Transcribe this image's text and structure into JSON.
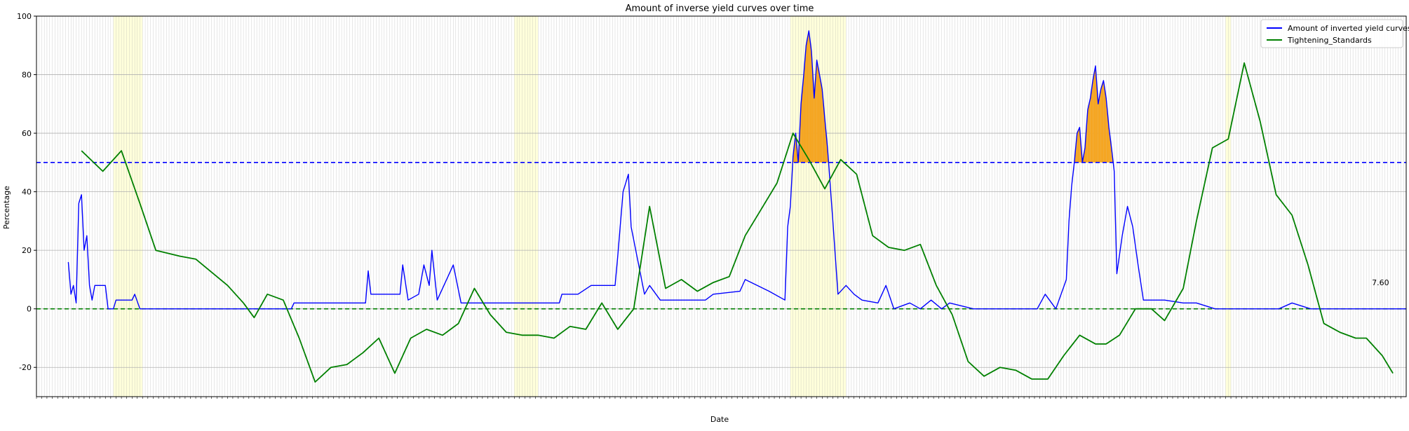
{
  "chart_data": {
    "type": "line",
    "title": "Amount of inverse yield curves over time",
    "xlabel": "Date",
    "ylabel": "Percentage",
    "xlim": [
      "1982-01-01",
      "2024-12-31"
    ],
    "ylim": [
      -30,
      100
    ],
    "yticks": [
      -20,
      0,
      20,
      40,
      60,
      80,
      100
    ],
    "grid": true,
    "legend_position": "top-right",
    "x_tick_labels": "monthly dates (illegibly small)",
    "reference_lines": [
      {
        "y": 50,
        "color": "#0000ff",
        "style": "dashed"
      },
      {
        "y": 0,
        "color": "#008000",
        "style": "dashed"
      }
    ],
    "highlight_regions": [
      {
        "start": "1984-06-01",
        "end": "1985-05-01",
        "color": "#ffff99"
      },
      {
        "start": "1997-01-01",
        "end": "1997-10-01",
        "color": "#ffff99"
      },
      {
        "start": "2005-09-01",
        "end": "2007-06-01",
        "color": "#ffff99"
      },
      {
        "start": "2019-05-01",
        "end": "2019-07-01",
        "color": "#ffff99"
      }
    ],
    "fill_above_threshold": {
      "threshold": 50,
      "color": "#f5a623",
      "series": "Amount of inverted yield curves"
    },
    "annotation": {
      "text": "7.60",
      "x": "2023-10-01",
      "y": 7.6
    },
    "series": [
      {
        "name": "Amount of inverted yield curves",
        "color": "#0000ff",
        "points": [
          [
            "1983-01-01",
            16
          ],
          [
            "1983-02-01",
            5
          ],
          [
            "1983-03-01",
            8
          ],
          [
            "1983-04-01",
            2
          ],
          [
            "1983-05-01",
            36
          ],
          [
            "1983-06-01",
            39
          ],
          [
            "1983-07-01",
            20
          ],
          [
            "1983-08-01",
            25
          ],
          [
            "1983-09-01",
            8
          ],
          [
            "1983-10-01",
            3
          ],
          [
            "1983-11-01",
            8
          ],
          [
            "1984-03-01",
            8
          ],
          [
            "1984-04-01",
            0
          ],
          [
            "1984-06-01",
            0
          ],
          [
            "1984-07-01",
            3
          ],
          [
            "1985-01-01",
            3
          ],
          [
            "1985-02-01",
            5
          ],
          [
            "1985-04-01",
            0
          ],
          [
            "1990-01-01",
            0
          ],
          [
            "1990-02-01",
            2
          ],
          [
            "1991-06-01",
            2
          ],
          [
            "1992-05-01",
            2
          ],
          [
            "1992-06-01",
            13
          ],
          [
            "1992-07-01",
            5
          ],
          [
            "1993-06-01",
            5
          ],
          [
            "1993-07-01",
            15
          ],
          [
            "1993-09-01",
            3
          ],
          [
            "1994-01-01",
            5
          ],
          [
            "1994-03-01",
            15
          ],
          [
            "1994-05-01",
            8
          ],
          [
            "1994-06-01",
            20
          ],
          [
            "1994-08-01",
            3
          ],
          [
            "1995-02-01",
            15
          ],
          [
            "1995-05-01",
            2
          ],
          [
            "1997-10-01",
            2
          ],
          [
            "1998-06-01",
            2
          ],
          [
            "1998-07-01",
            5
          ],
          [
            "1999-01-01",
            5
          ],
          [
            "1999-06-01",
            8
          ],
          [
            "2000-03-01",
            8
          ],
          [
            "2000-04-01",
            18
          ],
          [
            "2000-06-01",
            40
          ],
          [
            "2000-08-01",
            46
          ],
          [
            "2000-09-01",
            28
          ],
          [
            "2001-02-01",
            5
          ],
          [
            "2001-04-01",
            8
          ],
          [
            "2001-08-01",
            3
          ],
          [
            "2002-06-01",
            3
          ],
          [
            "2003-01-01",
            3
          ],
          [
            "2003-04-01",
            5
          ],
          [
            "2004-02-01",
            6
          ],
          [
            "2004-04-01",
            10
          ],
          [
            "2005-01-01",
            6
          ],
          [
            "2005-07-01",
            3
          ],
          [
            "2005-08-01",
            28
          ],
          [
            "2005-09-01",
            35
          ],
          [
            "2005-10-01",
            52
          ],
          [
            "2005-11-01",
            60
          ],
          [
            "2005-12-01",
            50
          ],
          [
            "2006-01-01",
            70
          ],
          [
            "2006-02-01",
            80
          ],
          [
            "2006-03-01",
            90
          ],
          [
            "2006-04-01",
            95
          ],
          [
            "2006-05-01",
            88
          ],
          [
            "2006-06-01",
            72
          ],
          [
            "2006-07-01",
            85
          ],
          [
            "2006-08-01",
            80
          ],
          [
            "2006-09-01",
            75
          ],
          [
            "2006-10-01",
            65
          ],
          [
            "2006-11-01",
            55
          ],
          [
            "2007-01-01",
            30
          ],
          [
            "2007-03-01",
            5
          ],
          [
            "2007-06-01",
            8
          ],
          [
            "2007-09-01",
            5
          ],
          [
            "2007-12-01",
            3
          ],
          [
            "2008-06-01",
            2
          ],
          [
            "2008-09-01",
            8
          ],
          [
            "2008-12-01",
            0
          ],
          [
            "2009-06-01",
            2
          ],
          [
            "2009-10-01",
            0
          ],
          [
            "2010-02-01",
            3
          ],
          [
            "2010-06-01",
            0
          ],
          [
            "2010-09-01",
            2
          ],
          [
            "2011-06-01",
            0
          ],
          [
            "2012-06-01",
            0
          ],
          [
            "2013-01-01",
            0
          ],
          [
            "2013-06-01",
            0
          ],
          [
            "2013-09-01",
            5
          ],
          [
            "2014-01-01",
            0
          ],
          [
            "2014-05-01",
            10
          ],
          [
            "2014-06-01",
            30
          ],
          [
            "2014-07-01",
            42
          ],
          [
            "2014-08-01",
            50
          ],
          [
            "2014-09-01",
            60
          ],
          [
            "2014-10-01",
            62
          ],
          [
            "2014-11-01",
            50
          ],
          [
            "2014-12-01",
            55
          ],
          [
            "2015-01-01",
            68
          ],
          [
            "2015-02-01",
            72
          ],
          [
            "2015-03-01",
            78
          ],
          [
            "2015-04-01",
            83
          ],
          [
            "2015-05-01",
            70
          ],
          [
            "2015-06-01",
            75
          ],
          [
            "2015-07-01",
            78
          ],
          [
            "2015-08-01",
            72
          ],
          [
            "2015-09-01",
            62
          ],
          [
            "2015-10-01",
            55
          ],
          [
            "2015-11-01",
            47
          ],
          [
            "2015-12-01",
            12
          ],
          [
            "2016-02-01",
            25
          ],
          [
            "2016-04-01",
            35
          ],
          [
            "2016-06-01",
            28
          ],
          [
            "2016-08-01",
            15
          ],
          [
            "2016-10-01",
            3
          ],
          [
            "2017-06-01",
            3
          ],
          [
            "2018-01-01",
            2
          ],
          [
            "2018-06-01",
            2
          ],
          [
            "2019-01-01",
            0
          ],
          [
            "2020-01-01",
            0
          ],
          [
            "2021-01-01",
            0
          ],
          [
            "2021-06-01",
            2
          ],
          [
            "2022-01-01",
            0
          ],
          [
            "2023-01-01",
            0
          ],
          [
            "2024-01-01",
            0
          ],
          [
            "2025-01-01",
            0
          ]
        ]
      },
      {
        "name": "Tightening_Standards",
        "color": "#008000",
        "points": [
          [
            "1983-06-01",
            54
          ],
          [
            "1984-02-01",
            47
          ],
          [
            "1984-09-01",
            54
          ],
          [
            "1985-04-01",
            36
          ],
          [
            "1985-10-01",
            20
          ],
          [
            "1986-07-01",
            18
          ],
          [
            "1987-01-01",
            17
          ],
          [
            "1988-01-01",
            8
          ],
          [
            "1988-07-01",
            2
          ],
          [
            "1988-11-01",
            -3
          ],
          [
            "1989-04-01",
            5
          ],
          [
            "1989-10-01",
            3
          ],
          [
            "1990-04-01",
            -10
          ],
          [
            "1990-10-01",
            -25
          ],
          [
            "1991-04-01",
            -20
          ],
          [
            "1991-10-01",
            -19
          ],
          [
            "1992-04-01",
            -15
          ],
          [
            "1992-10-01",
            -10
          ],
          [
            "1993-04-01",
            -22
          ],
          [
            "1993-10-01",
            -10
          ],
          [
            "1994-04-01",
            -7
          ],
          [
            "1994-10-01",
            -9
          ],
          [
            "1995-04-01",
            -5
          ],
          [
            "1995-10-01",
            7
          ],
          [
            "1996-04-01",
            -2
          ],
          [
            "1996-10-01",
            -8
          ],
          [
            "1997-04-01",
            -9
          ],
          [
            "1997-10-01",
            -9
          ],
          [
            "1998-04-01",
            -10
          ],
          [
            "1998-10-01",
            -6
          ],
          [
            "1999-04-01",
            -7
          ],
          [
            "1999-10-01",
            2
          ],
          [
            "2000-04-01",
            -7
          ],
          [
            "2000-10-01",
            0
          ],
          [
            "2001-04-01",
            35
          ],
          [
            "2001-10-01",
            7
          ],
          [
            "2002-04-01",
            10
          ],
          [
            "2002-10-01",
            6
          ],
          [
            "2003-04-01",
            9
          ],
          [
            "2003-10-01",
            11
          ],
          [
            "2004-04-01",
            25
          ],
          [
            "2004-10-01",
            34
          ],
          [
            "2005-04-01",
            43
          ],
          [
            "2005-10-01",
            60
          ],
          [
            "2006-04-01",
            51
          ],
          [
            "2006-10-01",
            41
          ],
          [
            "2007-04-01",
            51
          ],
          [
            "2007-10-01",
            46
          ],
          [
            "2008-04-01",
            25
          ],
          [
            "2008-10-01",
            21
          ],
          [
            "2009-04-01",
            20
          ],
          [
            "2009-10-01",
            22
          ],
          [
            "2010-04-01",
            8
          ],
          [
            "2010-10-01",
            -2
          ],
          [
            "2011-04-01",
            -18
          ],
          [
            "2011-10-01",
            -23
          ],
          [
            "2012-04-01",
            -20
          ],
          [
            "2012-10-01",
            -21
          ],
          [
            "2013-04-01",
            -24
          ],
          [
            "2013-10-01",
            -24
          ],
          [
            "2014-04-01",
            -16
          ],
          [
            "2014-10-01",
            -9
          ],
          [
            "2015-04-01",
            -12
          ],
          [
            "2015-08-01",
            -12
          ],
          [
            "2016-01-01",
            -9
          ],
          [
            "2016-07-01",
            0
          ],
          [
            "2017-01-01",
            0
          ],
          [
            "2017-06-01",
            -4
          ],
          [
            "2018-01-01",
            7
          ],
          [
            "2018-06-01",
            30
          ],
          [
            "2018-12-01",
            55
          ],
          [
            "2019-06-01",
            58
          ],
          [
            "2019-12-01",
            84
          ],
          [
            "2020-06-01",
            64
          ],
          [
            "2020-12-01",
            39
          ],
          [
            "2021-06-01",
            32
          ],
          [
            "2021-12-01",
            15
          ],
          [
            "2022-06-01",
            -5
          ],
          [
            "2022-12-01",
            -8
          ],
          [
            "2023-06-01",
            -10
          ],
          [
            "2023-10-01",
            -10
          ],
          [
            "2024-04-01",
            -16
          ],
          [
            "2024-08-01",
            -22
          ]
        ]
      }
    ]
  }
}
